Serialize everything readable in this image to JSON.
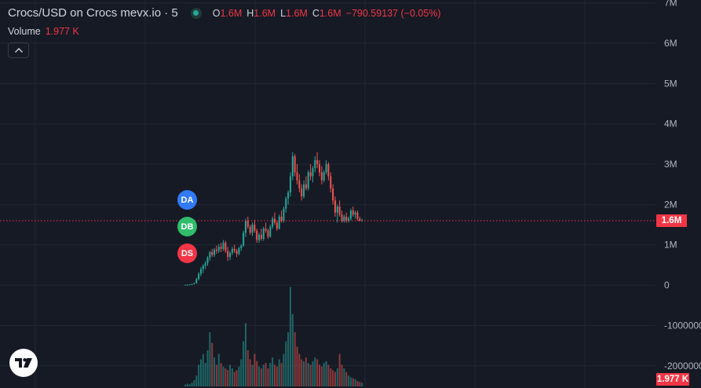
{
  "legend": {
    "title": "Crocs/USD on Crocs mevx.io · 5",
    "status_color": "#26a69a",
    "ohlc": [
      {
        "key": "O",
        "value": "1.6M"
      },
      {
        "key": "H",
        "value": "1.6M"
      },
      {
        "key": "L",
        "value": "1.6M"
      },
      {
        "key": "C",
        "value": "1.6M"
      }
    ],
    "change": "−790.59137 (−0.05%)"
  },
  "volume_legend": {
    "label": "Volume",
    "value": "1.977 K"
  },
  "collapse_icon": "chevron-up-icon",
  "markers": [
    {
      "label": "DA",
      "color": "#3179f5"
    },
    {
      "label": "DB",
      "color": "#2fbd6b"
    },
    {
      "label": "DS",
      "color": "#f23645"
    }
  ],
  "price_tag": {
    "label": "1.6M",
    "value": 1600000,
    "color": "#f23645"
  },
  "volume_tag": {
    "label": "1.977 K",
    "color": "#f23645"
  },
  "logo": "tradingview-logo",
  "chart_data": {
    "type": "candlestick",
    "y_ticks": [
      "7M",
      "6M",
      "5M",
      "4M",
      "3M",
      "2M",
      "1M",
      "0",
      "-1000000",
      "-2000000"
    ],
    "y_tick_values": [
      7000000,
      6000000,
      5000000,
      4000000,
      3000000,
      2000000,
      1000000,
      0,
      -1000000,
      -2000000
    ],
    "ylim": [
      -2550000,
      7150000
    ],
    "last_price": 1600000,
    "grid": true,
    "colors": {
      "up": "#26a69a",
      "down": "#ef5350"
    },
    "candles": [
      [
        0.0,
        0.01,
        0.0,
        0.01
      ],
      [
        0.01,
        0.02,
        0.0,
        0.01
      ],
      [
        0.01,
        0.02,
        0.01,
        0.02
      ],
      [
        0.02,
        0.04,
        0.01,
        0.03
      ],
      [
        0.03,
        0.06,
        0.02,
        0.05
      ],
      [
        0.05,
        0.18,
        0.04,
        0.15
      ],
      [
        0.15,
        0.32,
        0.12,
        0.28
      ],
      [
        0.28,
        0.45,
        0.22,
        0.4
      ],
      [
        0.4,
        0.52,
        0.3,
        0.48
      ],
      [
        0.48,
        0.6,
        0.4,
        0.55
      ],
      [
        0.55,
        0.72,
        0.48,
        0.68
      ],
      [
        0.68,
        0.85,
        0.6,
        0.82
      ],
      [
        0.82,
        0.9,
        0.7,
        0.75
      ],
      [
        0.75,
        0.92,
        0.7,
        0.88
      ],
      [
        0.88,
        0.98,
        0.78,
        0.85
      ],
      [
        0.85,
        1.02,
        0.8,
        0.95
      ],
      [
        0.95,
        1.05,
        0.82,
        0.9
      ],
      [
        0.9,
        1.12,
        0.85,
        1.05
      ],
      [
        1.05,
        1.1,
        0.8,
        0.85
      ],
      [
        0.85,
        0.95,
        0.6,
        0.7
      ],
      [
        0.7,
        0.85,
        0.62,
        0.8
      ],
      [
        0.8,
        0.95,
        0.75,
        0.9
      ],
      [
        0.9,
        1.0,
        0.8,
        0.85
      ],
      [
        0.85,
        0.9,
        0.7,
        0.78
      ],
      [
        0.78,
        0.95,
        0.74,
        0.92
      ],
      [
        0.92,
        1.02,
        0.85,
        0.98
      ],
      [
        0.98,
        1.35,
        0.95,
        1.3
      ],
      [
        1.3,
        1.65,
        1.2,
        1.6
      ],
      [
        1.6,
        1.7,
        1.4,
        1.45
      ],
      [
        1.45,
        1.5,
        1.25,
        1.3
      ],
      [
        1.3,
        1.55,
        1.22,
        1.5
      ],
      [
        1.5,
        1.62,
        1.3,
        1.35
      ],
      [
        1.35,
        1.4,
        1.05,
        1.12
      ],
      [
        1.12,
        1.3,
        1.05,
        1.25
      ],
      [
        1.25,
        1.4,
        1.1,
        1.15
      ],
      [
        1.15,
        1.45,
        1.1,
        1.4
      ],
      [
        1.4,
        1.55,
        1.3,
        1.35
      ],
      [
        1.35,
        1.4,
        1.15,
        1.2
      ],
      [
        1.2,
        1.5,
        1.18,
        1.45
      ],
      [
        1.45,
        1.7,
        1.4,
        1.65
      ],
      [
        1.65,
        1.8,
        1.5,
        1.55
      ],
      [
        1.55,
        1.6,
        1.35,
        1.4
      ],
      [
        1.4,
        1.75,
        1.38,
        1.7
      ],
      [
        1.7,
        1.85,
        1.55,
        1.6
      ],
      [
        1.6,
        1.95,
        1.55,
        1.9
      ],
      [
        1.9,
        2.2,
        1.8,
        2.15
      ],
      [
        2.15,
        2.35,
        2.0,
        2.3
      ],
      [
        2.3,
        2.8,
        2.2,
        2.7
      ],
      [
        2.7,
        3.3,
        2.6,
        3.2
      ],
      [
        3.2,
        3.25,
        2.7,
        2.8
      ],
      [
        2.8,
        3.0,
        2.5,
        2.6
      ],
      [
        2.6,
        2.75,
        2.3,
        2.4
      ],
      [
        2.4,
        2.5,
        2.1,
        2.2
      ],
      [
        2.2,
        2.6,
        2.15,
        2.5
      ],
      [
        2.5,
        2.7,
        2.35,
        2.4
      ],
      [
        2.4,
        2.85,
        2.35,
        2.8
      ],
      [
        2.8,
        3.0,
        2.6,
        2.7
      ],
      [
        2.7,
        2.95,
        2.55,
        2.9
      ],
      [
        2.9,
        3.2,
        2.8,
        3.1
      ],
      [
        3.1,
        3.3,
        2.9,
        3.0
      ],
      [
        3.0,
        3.1,
        2.7,
        2.8
      ],
      [
        2.8,
        2.95,
        2.5,
        2.6
      ],
      [
        2.6,
        2.85,
        2.55,
        2.8
      ],
      [
        2.8,
        3.1,
        2.75,
        3.0
      ],
      [
        3.0,
        3.05,
        2.6,
        2.7
      ],
      [
        2.7,
        2.8,
        2.3,
        2.4
      ],
      [
        2.4,
        2.5,
        2.0,
        2.1
      ],
      [
        2.1,
        2.2,
        1.7,
        1.8
      ],
      [
        1.8,
        2.0,
        1.55,
        1.95
      ],
      [
        1.95,
        2.1,
        1.7,
        1.75
      ],
      [
        1.75,
        1.85,
        1.55,
        1.6
      ],
      [
        1.6,
        1.75,
        1.55,
        1.7
      ],
      [
        1.7,
        1.8,
        1.55,
        1.6
      ],
      [
        1.6,
        1.7,
        1.55,
        1.65
      ],
      [
        1.65,
        1.9,
        1.6,
        1.85
      ],
      [
        1.85,
        1.95,
        1.7,
        1.75
      ],
      [
        1.75,
        1.85,
        1.65,
        1.8
      ],
      [
        1.8,
        1.85,
        1.6,
        1.65
      ],
      [
        1.65,
        1.7,
        1.58,
        1.6
      ],
      [
        1.6,
        1.65,
        1.58,
        1.6
      ]
    ],
    "volumes": [
      0.1,
      0.15,
      0.12,
      0.2,
      0.35,
      0.6,
      1.2,
      1.5,
      1.8,
      1.3,
      2.0,
      3.0,
      2.4,
      1.6,
      1.2,
      1.8,
      1.3,
      1.1,
      1.0,
      0.9,
      1.2,
      1.0,
      0.8,
      0.9,
      1.1,
      1.5,
      2.5,
      3.5,
      2.0,
      1.5,
      1.2,
      1.8,
      1.4,
      1.1,
      1.0,
      1.2,
      1.3,
      1.0,
      1.3,
      1.6,
      1.2,
      1.1,
      1.5,
      1.3,
      1.8,
      2.5,
      3.0,
      5.5,
      4.0,
      3.0,
      2.2,
      1.8,
      1.5,
      1.4,
      1.6,
      1.3,
      1.2,
      1.4,
      1.6,
      1.5,
      1.2,
      1.1,
      1.3,
      1.4,
      1.2,
      1.0,
      0.9,
      0.8,
      1.0,
      1.8,
      1.2,
      1.0,
      0.8,
      0.6,
      0.5,
      0.45,
      0.4,
      0.3,
      0.25,
      0.2
    ]
  }
}
